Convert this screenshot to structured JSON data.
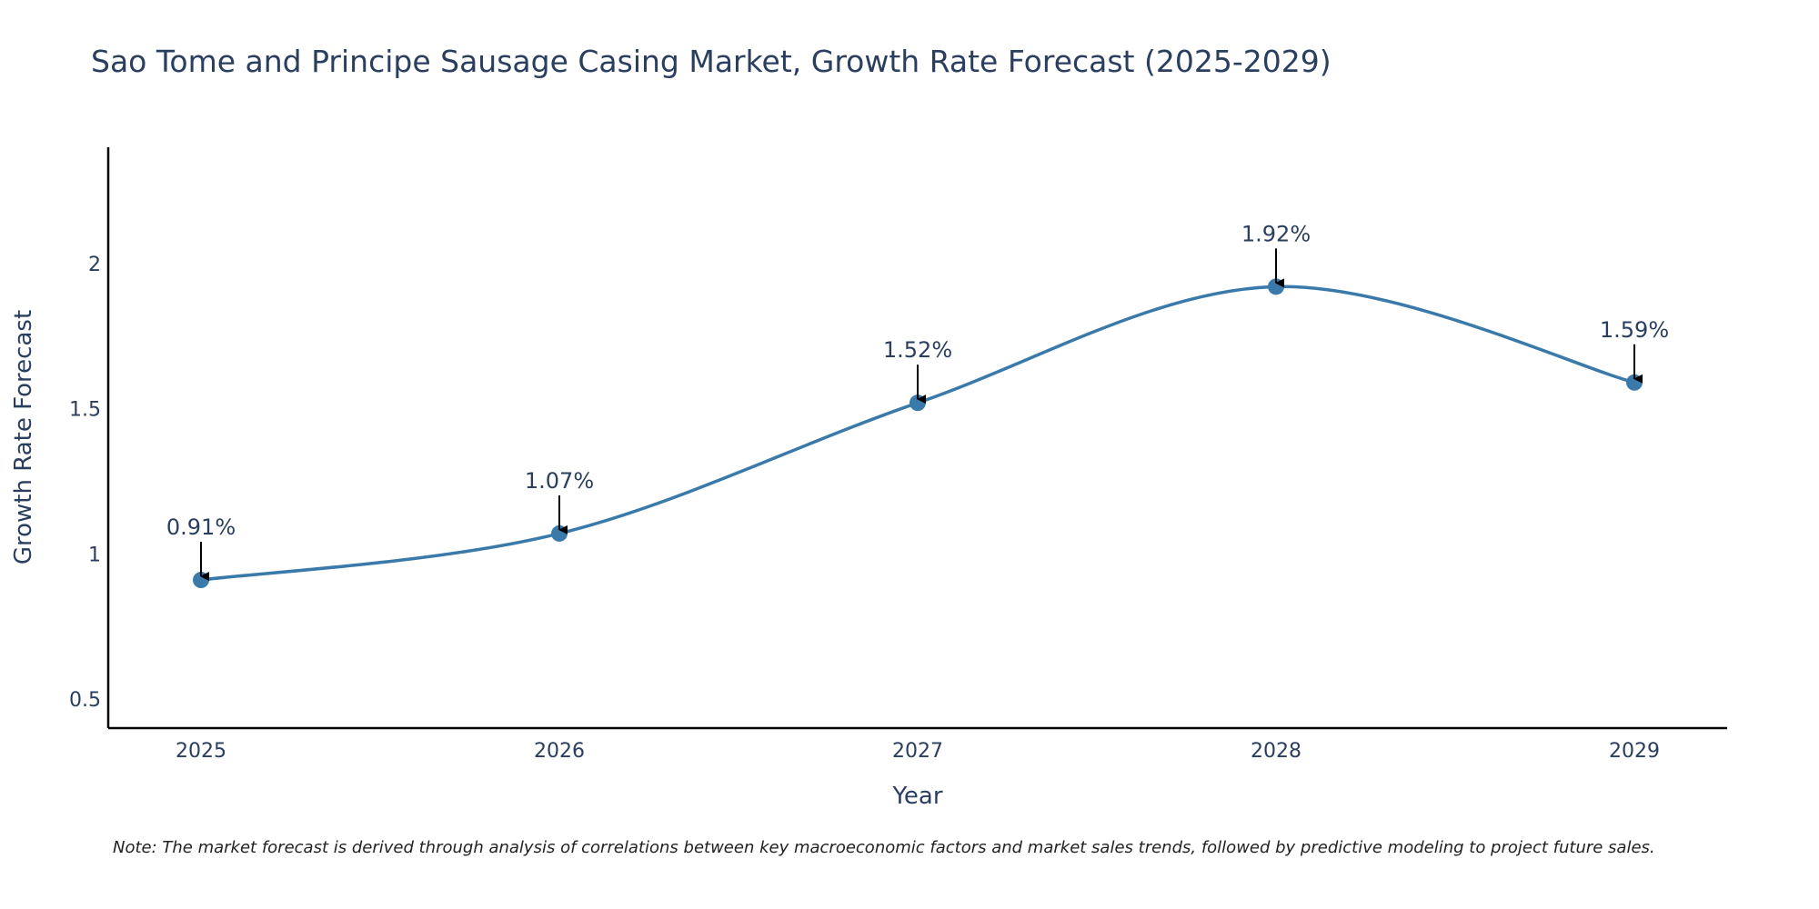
{
  "chart_data": {
    "type": "line",
    "title": "Sao Tome and Principe Sausage Casing Market, Growth Rate Forecast (2025-2029)",
    "xlabel": "Year",
    "ylabel": "Growth Rate Forecast",
    "categories": [
      "2025",
      "2026",
      "2027",
      "2028",
      "2029"
    ],
    "series": [
      {
        "name": "Growth Rate Forecast",
        "values": [
          0.91,
          1.07,
          1.52,
          1.92,
          1.59
        ],
        "labels": [
          "0.91%",
          "1.07%",
          "1.52%",
          "1.92%",
          "1.59%"
        ],
        "color": "#3a7aab"
      }
    ],
    "ylim": [
      0.4,
      2.4
    ],
    "yticks": [
      0.5,
      1,
      1.5,
      2
    ],
    "ytick_labels": [
      "0.5",
      "1",
      "1.5",
      "2"
    ],
    "grid": false,
    "smoothing": "spline",
    "annotation_arrows": true
  },
  "note": "Note: The market forecast is derived through analysis of correlations between key macroeconomic factors and market sales trends, followed by predictive modeling to project future sales."
}
